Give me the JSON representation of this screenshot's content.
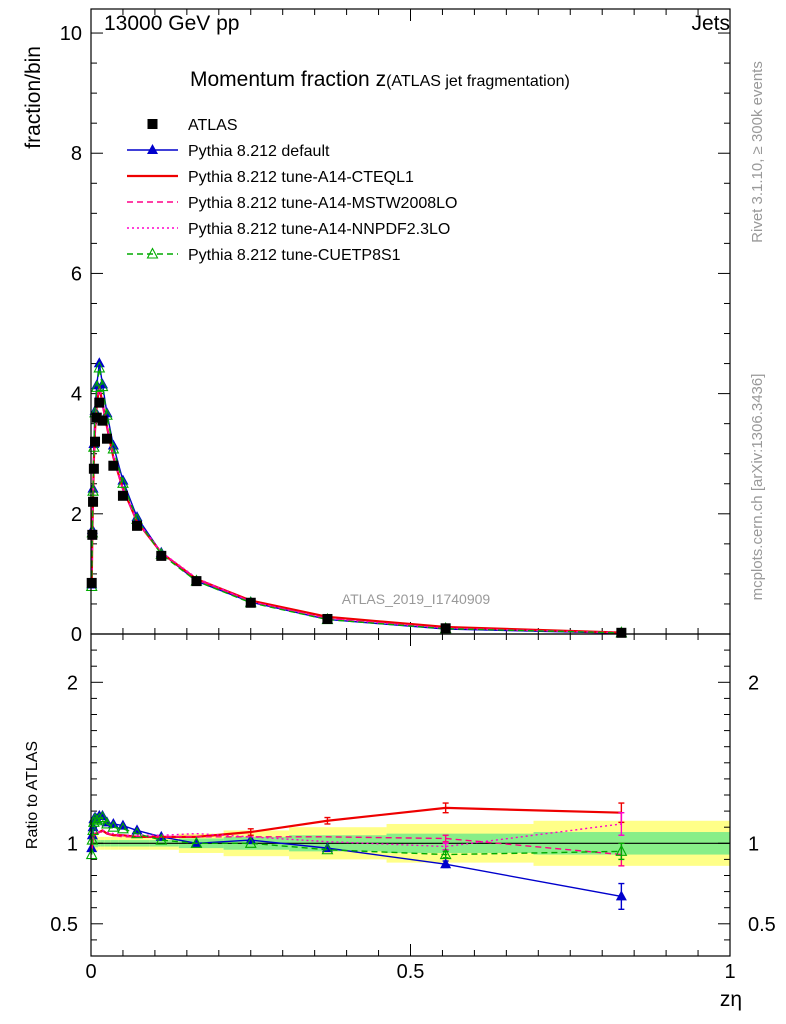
{
  "header": {
    "energy_label": "13000 GeV pp",
    "category_label": "Jets",
    "side_label_rivet": "Rivet 3.1.10, ≥ 300k events",
    "side_label_mcplots": "mcplots.cern.ch [arXiv:1306.3436]",
    "analysis_id": "ATLAS_2019_I1740909"
  },
  "chart_data": {
    "type": "line",
    "title_main": "Momentum fraction z",
    "title_sub": "(ATLAS jet fragmentation)",
    "xlabel": "zη",
    "ylabel": "fraction/bin",
    "ratio_ylabel": "Ratio to ATLAS",
    "xlim": [
      0,
      1
    ],
    "ylim": [
      0,
      10.4
    ],
    "ratio_ylim": [
      0.3,
      2.3
    ],
    "x_ticks": [
      0,
      0.5,
      1
    ],
    "x_tick_labels": [
      "0",
      "0.5",
      "1"
    ],
    "y_ticks": [
      0,
      2,
      4,
      6,
      8,
      10
    ],
    "y_tick_labels": [
      "0",
      "2",
      "4",
      "6",
      "8",
      "10"
    ],
    "ratio_y_ticks": [
      0.5,
      1,
      2
    ],
    "ratio_y_tick_labels": [
      "0.5",
      "1",
      "2"
    ],
    "x": [
      0.0011,
      0.0021,
      0.0032,
      0.0045,
      0.0063,
      0.009,
      0.013,
      0.018,
      0.025,
      0.035,
      0.05,
      0.072,
      0.11,
      0.165,
      0.25,
      0.37,
      0.555,
      0.83
    ],
    "data": {
      "name": "ATLAS",
      "values": [
        0.85,
        1.65,
        2.2,
        2.75,
        3.2,
        3.6,
        3.85,
        3.55,
        3.25,
        2.8,
        2.3,
        1.8,
        1.3,
        0.88,
        0.52,
        0.25,
        0.095,
        0.02
      ],
      "uncertainty_band_rel": [
        0.03,
        0.03,
        0.03,
        0.025,
        0.025,
        0.025,
        0.02,
        0.02,
        0.02,
        0.02,
        0.02,
        0.02,
        0.02,
        0.03,
        0.04,
        0.05,
        0.06,
        0.07
      ]
    },
    "series": [
      {
        "name": "Pythia 8.212 default",
        "color": "#0000cc",
        "style": "solid-triangle",
        "ratio": [
          0.97,
          1.05,
          1.1,
          1.15,
          1.16,
          1.15,
          1.17,
          1.17,
          1.13,
          1.12,
          1.11,
          1.08,
          1.04,
          1.0,
          1.02,
          0.97,
          0.87,
          0.67
        ],
        "ratio_err": [
          0,
          0,
          0,
          0,
          0,
          0,
          0,
          0,
          0,
          0,
          0,
          0,
          0,
          0,
          0,
          0,
          0.02,
          0.08
        ]
      },
      {
        "name": "Pythia 8.212 tune-A14-CTEQL1",
        "color": "#ee0000",
        "style": "solid",
        "ratio": [
          0.96,
          1.01,
          1.03,
          1.05,
          1.06,
          1.06,
          1.07,
          1.08,
          1.06,
          1.05,
          1.05,
          1.04,
          1.04,
          1.04,
          1.07,
          1.14,
          1.22,
          1.19
        ],
        "ratio_err": [
          0,
          0,
          0,
          0,
          0,
          0,
          0,
          0,
          0,
          0,
          0,
          0,
          0,
          0,
          0.02,
          0.02,
          0.03,
          0.06
        ]
      },
      {
        "name": "Pythia 8.212 tune-A14-MSTW2008LO",
        "color": "#ff0088",
        "style": "dashed",
        "ratio": [
          0.95,
          1.0,
          1.03,
          1.05,
          1.06,
          1.06,
          1.07,
          1.07,
          1.06,
          1.05,
          1.04,
          1.04,
          1.04,
          1.04,
          1.04,
          1.04,
          1.03,
          0.93
        ],
        "ratio_err": [
          0,
          0,
          0,
          0,
          0,
          0,
          0,
          0,
          0,
          0,
          0,
          0,
          0,
          0,
          0,
          0,
          0.02,
          0.07
        ]
      },
      {
        "name": "Pythia 8.212 tune-A14-NNPDF2.3LO",
        "color": "#ff00cc",
        "style": "dotted",
        "ratio": [
          0.96,
          1.01,
          1.03,
          1.05,
          1.06,
          1.07,
          1.07,
          1.08,
          1.07,
          1.06,
          1.05,
          1.05,
          1.05,
          1.06,
          1.04,
          1.01,
          0.98,
          1.12
        ],
        "ratio_err": [
          0,
          0,
          0,
          0,
          0,
          0,
          0,
          0,
          0,
          0,
          0,
          0,
          0,
          0,
          0,
          0,
          0.02,
          0.07
        ]
      },
      {
        "name": "Pythia 8.212 tune-CUETP8S1",
        "color": "#00aa00",
        "style": "dashed-open-triangle",
        "ratio": [
          0.93,
          1.02,
          1.08,
          1.13,
          1.15,
          1.14,
          1.15,
          1.16,
          1.12,
          1.1,
          1.09,
          1.06,
          1.02,
          1.0,
          1.0,
          0.96,
          0.93,
          0.95
        ],
        "ratio_err": [
          0,
          0,
          0,
          0,
          0,
          0,
          0,
          0,
          0,
          0,
          0,
          0,
          0,
          0,
          0,
          0,
          0.02,
          0.05
        ]
      }
    ],
    "legend_position": "top-left"
  }
}
